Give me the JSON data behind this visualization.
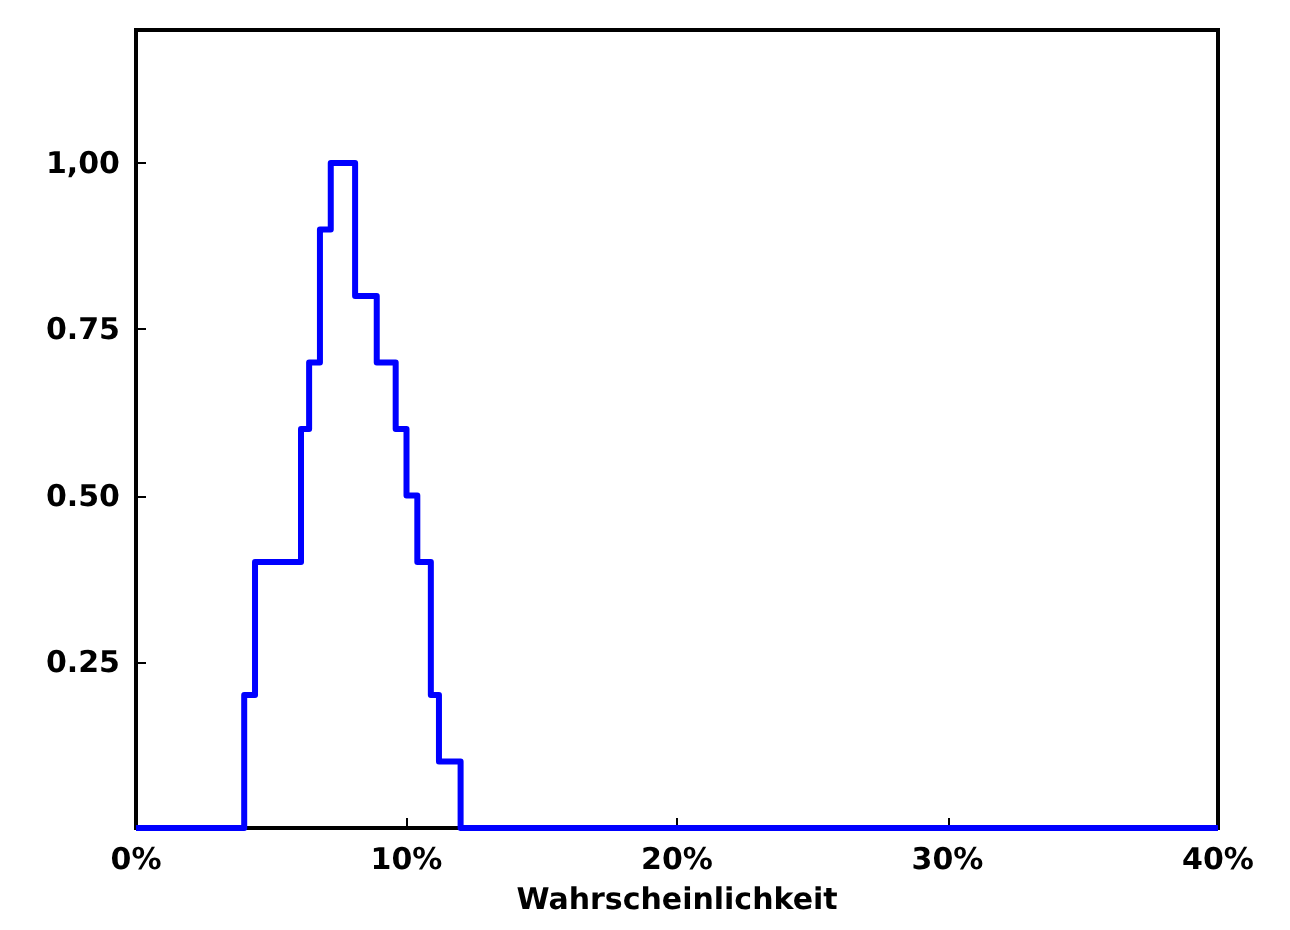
{
  "chart_data": {
    "type": "step",
    "xlabel": "Wahrscheinlichkeit",
    "x": [
      0,
      4.0,
      4.4,
      6.1,
      6.4,
      6.8,
      7.2,
      8.1,
      8.9,
      9.6,
      10.0,
      10.4,
      10.9,
      11.2,
      12.0,
      40
    ],
    "series": [
      {
        "color": "#0000ff",
        "values": [
          0,
          0.2,
          0.4,
          0.6,
          0.7,
          0.9,
          1.0,
          0.8,
          0.7,
          0.6,
          0.5,
          0.4,
          0.2,
          0.1,
          0,
          0
        ]
      }
    ],
    "xlim": [
      0,
      40
    ],
    "xticks": [
      {
        "value": 0,
        "label": "0%"
      },
      {
        "value": 10,
        "label": "10%"
      },
      {
        "value": 20,
        "label": "20%"
      },
      {
        "value": 30,
        "label": "30%"
      },
      {
        "value": 40,
        "label": "40%"
      }
    ],
    "ylim": [
      0,
      1.2
    ],
    "yticks": [
      0.25,
      {
        "value": 0.5,
        "label": "0.50"
      },
      0.75,
      {
        "value": 1,
        "label": "1,00"
      }
    ],
    "grid": false,
    "marker": "none",
    "line_style": "solid"
  }
}
